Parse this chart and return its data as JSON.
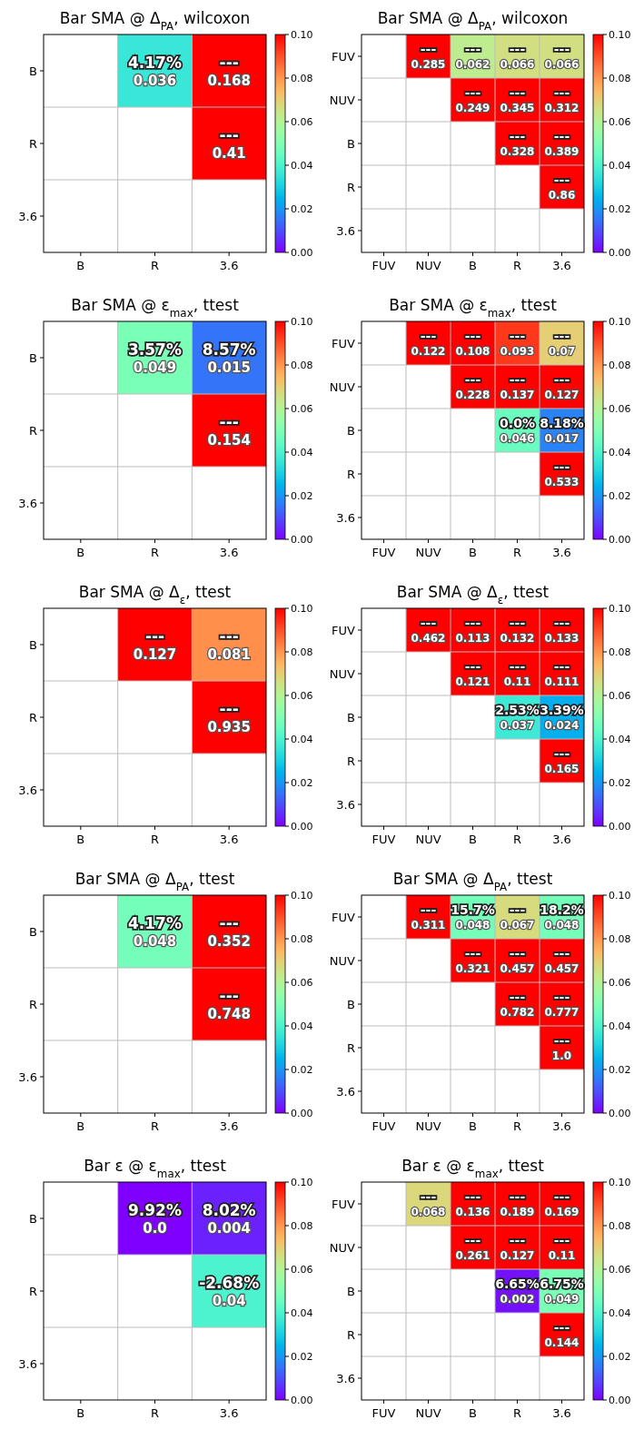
{
  "chart_data": [
    {
      "type": "heatmap",
      "title": "Bar SMA @ Δ$_{PA}$, wilcoxon",
      "categories": [
        "B",
        "R",
        "3.6"
      ],
      "y_categories": [
        "B",
        "R",
        "3.6"
      ],
      "cells": [
        [
          null,
          0.036,
          0.168
        ],
        [
          null,
          null,
          0.41
        ],
        [
          null,
          null,
          null
        ]
      ],
      "data_labels": true,
      "annotations": [
        "4.17%",
        "---",
        "---"
      ],
      "clim": [
        0,
        0.1
      ],
      "cticks": [
        {
          "value": 0,
          "label": "0.00"
        },
        {
          "value": 0.02,
          "label": "0.02"
        },
        {
          "value": 0.04,
          "label": "0.04"
        },
        {
          "value": 0.06,
          "label": "0.06"
        },
        {
          "value": 0.08,
          "label": "0.08"
        },
        {
          "value": 0.1,
          "label": "0.10"
        }
      ],
      "grid": true
    },
    {
      "type": "heatmap",
      "title": "Bar SMA @ Δ$_{PA}$, wilcoxon",
      "categories": [
        "FUV",
        "NUV",
        "B",
        "R",
        "3.6"
      ],
      "y_categories": [
        "FUV",
        "NUV",
        "B",
        "R",
        "3.6"
      ],
      "cells": [
        [
          null,
          0.285,
          0.062,
          0.066,
          0.066
        ],
        [
          null,
          null,
          0.249,
          0.345,
          0.312
        ],
        [
          null,
          null,
          null,
          0.328,
          0.389
        ],
        [
          null,
          null,
          null,
          null,
          0.86
        ],
        [
          null,
          null,
          null,
          null,
          null
        ]
      ],
      "data_labels": true,
      "annotations": [
        "---",
        "---",
        "---",
        "---",
        "---",
        "---",
        "---",
        "---",
        "---",
        "---"
      ],
      "clim": [
        0,
        0.1
      ],
      "cticks": [
        {
          "value": 0,
          "label": "0.00"
        },
        {
          "value": 0.02,
          "label": "0.02"
        },
        {
          "value": 0.04,
          "label": "0.04"
        },
        {
          "value": 0.06,
          "label": "0.06"
        },
        {
          "value": 0.08,
          "label": "0.08"
        },
        {
          "value": 0.1,
          "label": "0.10"
        }
      ],
      "grid": true
    },
    {
      "type": "heatmap",
      "title": "Bar SMA @ ε$_{max}$, ttest",
      "categories": [
        "B",
        "R",
        "3.6"
      ],
      "y_categories": [
        "B",
        "R",
        "3.6"
      ],
      "cells": [
        [
          null,
          0.049,
          0.015
        ],
        [
          null,
          null,
          0.154
        ],
        [
          null,
          null,
          null
        ]
      ],
      "data_labels": true,
      "annotations": [
        "3.57%",
        "8.57%",
        "---"
      ],
      "clim": [
        0,
        0.1
      ],
      "cticks": [
        {
          "value": 0,
          "label": "0.00"
        },
        {
          "value": 0.02,
          "label": "0.02"
        },
        {
          "value": 0.04,
          "label": "0.04"
        },
        {
          "value": 0.06,
          "label": "0.06"
        },
        {
          "value": 0.08,
          "label": "0.08"
        },
        {
          "value": 0.1,
          "label": "0.10"
        }
      ],
      "grid": true
    },
    {
      "type": "heatmap",
      "title": "Bar SMA @ ε$_{max}$, ttest",
      "categories": [
        "FUV",
        "NUV",
        "B",
        "R",
        "3.6"
      ],
      "y_categories": [
        "FUV",
        "NUV",
        "B",
        "R",
        "3.6"
      ],
      "cells": [
        [
          null,
          0.122,
          0.108,
          0.093,
          0.07
        ],
        [
          null,
          null,
          0.228,
          0.137,
          0.127
        ],
        [
          null,
          null,
          null,
          0.046,
          0.017
        ],
        [
          null,
          null,
          null,
          null,
          0.533
        ],
        [
          null,
          null,
          null,
          null,
          null
        ]
      ],
      "data_labels": true,
      "annotations": [
        "---",
        "---",
        "---",
        "---",
        "---",
        "---",
        "---",
        "0.0%",
        "8.18%",
        "---"
      ],
      "clim": [
        0,
        0.1
      ],
      "cticks": [
        {
          "value": 0,
          "label": "0.00"
        },
        {
          "value": 0.02,
          "label": "0.02"
        },
        {
          "value": 0.04,
          "label": "0.04"
        },
        {
          "value": 0.06,
          "label": "0.06"
        },
        {
          "value": 0.08,
          "label": "0.08"
        },
        {
          "value": 0.1,
          "label": "0.10"
        }
      ],
      "grid": true
    },
    {
      "type": "heatmap",
      "title": "Bar SMA @ Δ$_{ε}$, ttest",
      "categories": [
        "B",
        "R",
        "3.6"
      ],
      "y_categories": [
        "B",
        "R",
        "3.6"
      ],
      "cells": [
        [
          null,
          0.127,
          0.081
        ],
        [
          null,
          null,
          0.935
        ],
        [
          null,
          null,
          null
        ]
      ],
      "data_labels": true,
      "annotations": [
        "---",
        "---",
        "---"
      ],
      "clim": [
        0,
        0.1
      ],
      "cticks": [
        {
          "value": 0,
          "label": "0.00"
        },
        {
          "value": 0.02,
          "label": "0.02"
        },
        {
          "value": 0.04,
          "label": "0.04"
        },
        {
          "value": 0.06,
          "label": "0.06"
        },
        {
          "value": 0.08,
          "label": "0.08"
        },
        {
          "value": 0.1,
          "label": "0.10"
        }
      ],
      "grid": true
    },
    {
      "type": "heatmap",
      "title": "Bar SMA @ Δ$_{ε}$, ttest",
      "categories": [
        "FUV",
        "NUV",
        "B",
        "R",
        "3.6"
      ],
      "y_categories": [
        "FUV",
        "NUV",
        "B",
        "R",
        "3.6"
      ],
      "cells": [
        [
          null,
          0.462,
          0.113,
          0.132,
          0.133
        ],
        [
          null,
          null,
          0.121,
          0.11,
          0.111
        ],
        [
          null,
          null,
          null,
          0.037,
          0.024
        ],
        [
          null,
          null,
          null,
          null,
          0.165
        ],
        [
          null,
          null,
          null,
          null,
          null
        ]
      ],
      "data_labels": true,
      "annotations": [
        "---",
        "---",
        "---",
        "---",
        "---",
        "---",
        "---",
        "2.53%",
        "3.39%",
        "---"
      ],
      "clim": [
        0,
        0.1
      ],
      "cticks": [
        {
          "value": 0,
          "label": "0.00"
        },
        {
          "value": 0.02,
          "label": "0.02"
        },
        {
          "value": 0.04,
          "label": "0.04"
        },
        {
          "value": 0.06,
          "label": "0.06"
        },
        {
          "value": 0.08,
          "label": "0.08"
        },
        {
          "value": 0.1,
          "label": "0.10"
        }
      ],
      "grid": true
    },
    {
      "type": "heatmap",
      "title": "Bar SMA @ Δ$_{PA}$, ttest",
      "categories": [
        "B",
        "R",
        "3.6"
      ],
      "y_categories": [
        "B",
        "R",
        "3.6"
      ],
      "cells": [
        [
          null,
          0.048,
          0.352
        ],
        [
          null,
          null,
          0.748
        ],
        [
          null,
          null,
          null
        ]
      ],
      "data_labels": true,
      "annotations": [
        "4.17%",
        "---",
        "---"
      ],
      "clim": [
        0,
        0.1
      ],
      "cticks": [
        {
          "value": 0,
          "label": "0.00"
        },
        {
          "value": 0.02,
          "label": "0.02"
        },
        {
          "value": 0.04,
          "label": "0.04"
        },
        {
          "value": 0.06,
          "label": "0.06"
        },
        {
          "value": 0.08,
          "label": "0.08"
        },
        {
          "value": 0.1,
          "label": "0.10"
        }
      ],
      "grid": true
    },
    {
      "type": "heatmap",
      "title": "Bar SMA @ Δ$_{PA}$, ttest",
      "categories": [
        "FUV",
        "NUV",
        "B",
        "R",
        "3.6"
      ],
      "y_categories": [
        "FUV",
        "NUV",
        "B",
        "R",
        "3.6"
      ],
      "cells": [
        [
          null,
          0.311,
          0.048,
          0.067,
          0.048
        ],
        [
          null,
          null,
          0.321,
          0.457,
          0.457
        ],
        [
          null,
          null,
          null,
          0.782,
          0.777
        ],
        [
          null,
          null,
          null,
          null,
          1.0
        ],
        [
          null,
          null,
          null,
          null,
          null
        ]
      ],
      "data_labels": true,
      "cell_labels": [
        [
          null,
          "0.311",
          "0.048",
          "0.067",
          "0.048"
        ],
        [
          null,
          null,
          "0.321",
          "0.457",
          "0.457"
        ],
        [
          null,
          null,
          null,
          "0.782",
          "0.777"
        ],
        [
          null,
          null,
          null,
          null,
          "1.0"
        ],
        [
          null,
          null,
          null,
          null,
          null
        ]
      ],
      "annotations": [
        "---",
        "15.7%",
        "---",
        "18.2%",
        "---",
        "---",
        "---",
        "---",
        "---",
        "---"
      ],
      "clim": [
        0,
        0.1
      ],
      "cticks": [
        {
          "value": 0,
          "label": "0.00"
        },
        {
          "value": 0.02,
          "label": "0.02"
        },
        {
          "value": 0.04,
          "label": "0.04"
        },
        {
          "value": 0.06,
          "label": "0.06"
        },
        {
          "value": 0.08,
          "label": "0.08"
        },
        {
          "value": 0.1,
          "label": "0.10"
        }
      ],
      "grid": true
    },
    {
      "type": "heatmap",
      "title": "Bar ε @ ε$_{max}$, ttest",
      "categories": [
        "B",
        "R",
        "3.6"
      ],
      "y_categories": [
        "B",
        "R",
        "3.6"
      ],
      "cells": [
        [
          null,
          0.0,
          0.004
        ],
        [
          null,
          null,
          0.04
        ],
        [
          null,
          null,
          null
        ]
      ],
      "data_labels": true,
      "cell_labels": [
        [
          null,
          "0.0",
          "0.004"
        ],
        [
          null,
          null,
          "0.04"
        ],
        [
          null,
          null,
          null
        ]
      ],
      "annotations": [
        "9.92%",
        "8.02%",
        "-2.68%"
      ],
      "clim": [
        0,
        0.1
      ],
      "cticks": [
        {
          "value": 0,
          "label": "0.00"
        },
        {
          "value": 0.02,
          "label": "0.02"
        },
        {
          "value": 0.04,
          "label": "0.04"
        },
        {
          "value": 0.06,
          "label": "0.06"
        },
        {
          "value": 0.08,
          "label": "0.08"
        },
        {
          "value": 0.1,
          "label": "0.10"
        }
      ],
      "grid": true
    },
    {
      "type": "heatmap",
      "title": "Bar ε @ ε$_{max}$, ttest",
      "categories": [
        "FUV",
        "NUV",
        "B",
        "R",
        "3.6"
      ],
      "y_categories": [
        "FUV",
        "NUV",
        "B",
        "R",
        "3.6"
      ],
      "cells": [
        [
          null,
          0.068,
          0.136,
          0.189,
          0.169
        ],
        [
          null,
          null,
          0.261,
          0.127,
          0.11
        ],
        [
          null,
          null,
          null,
          0.002,
          0.049
        ],
        [
          null,
          null,
          null,
          null,
          0.144
        ],
        [
          null,
          null,
          null,
          null,
          null
        ]
      ],
      "data_labels": true,
      "annotations": [
        "---",
        "---",
        "---",
        "---",
        "---",
        "---",
        "---",
        "6.65%",
        "6.75%",
        "---"
      ],
      "clim": [
        0,
        0.1
      ],
      "cticks": [
        {
          "value": 0,
          "label": "0.00"
        },
        {
          "value": 0.02,
          "label": "0.02"
        },
        {
          "value": 0.04,
          "label": "0.04"
        },
        {
          "value": 0.06,
          "label": "0.06"
        },
        {
          "value": 0.08,
          "label": "0.08"
        },
        {
          "value": 0.1,
          "label": "0.10"
        }
      ],
      "grid": true
    }
  ]
}
